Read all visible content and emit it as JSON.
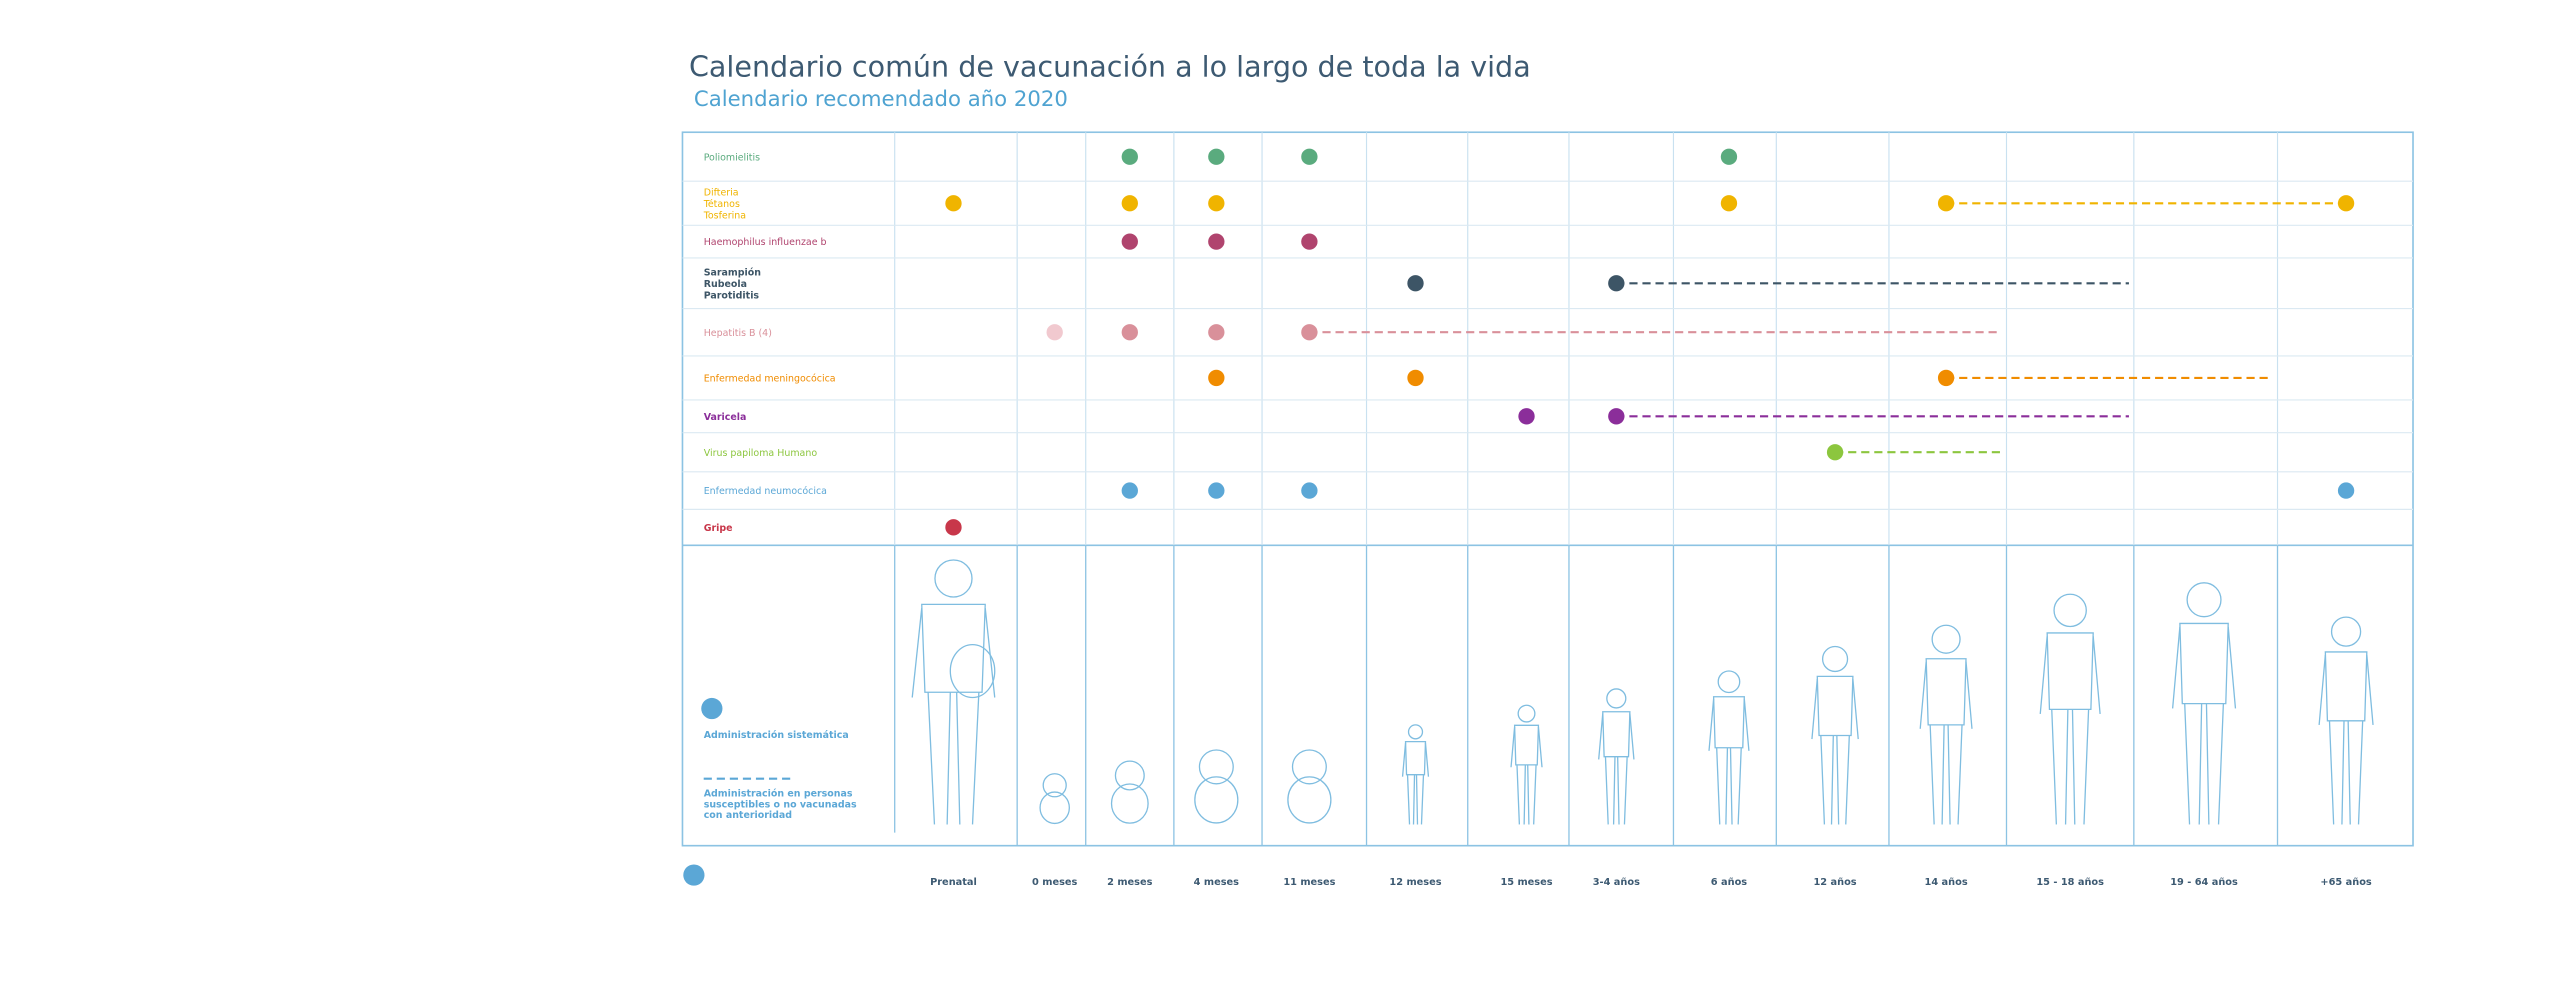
{
  "header": {
    "title": "Calendario común de vacunación a lo largo de toda la vida",
    "subtitle": "Calendario recomendado año 2020"
  },
  "ages": [
    "Prenatal",
    "0 meses",
    "2 meses",
    "4 meses",
    "11 meses",
    "12 meses",
    "15 meses",
    "3-4 años",
    "6 años",
    "12 años",
    "14 años",
    "15 - 18 años",
    "19 - 64 años",
    "+65 años"
  ],
  "vaccines": [
    {
      "name": [
        "Poliomielitis"
      ],
      "color": "#5aab7e",
      "doses": [
        "2 meses",
        "4 meses",
        "11 meses",
        "6 años"
      ]
    },
    {
      "name": [
        "Difteria",
        "Tétanos",
        "Tosferina"
      ],
      "color": "#f0b400",
      "doses": [
        "Prenatal",
        "2 meses",
        "4 meses",
        "6 años",
        "14 años",
        "+65 años"
      ],
      "susceptible": [
        "14 años",
        "+65 años"
      ]
    },
    {
      "name": [
        "Haemophilus influenzae b"
      ],
      "color": "#b0446e",
      "doses": [
        "2 meses",
        "4 meses",
        "11 meses"
      ]
    },
    {
      "name": [
        "Sarampión",
        "Rubeola",
        "Parotiditis"
      ],
      "color": "#3d5566",
      "doses": [
        "12 meses",
        "3-4 años"
      ],
      "susceptible": [
        "3-4 años",
        "19 - 64 años"
      ]
    },
    {
      "name": [
        "Hepatitis B (4)"
      ],
      "color": "#d9909a",
      "doses": [
        "2 meses",
        "4 meses",
        "11 meses"
      ],
      "light_doses": [
        "0 meses"
      ],
      "light_color": "#f1c9cf",
      "susceptible": [
        "11 meses",
        "15 - 18 años"
      ]
    },
    {
      "name": [
        "Enfermedad meningocócica"
      ],
      "color": "#f08c00",
      "doses": [
        "4 meses",
        "12 meses",
        "14 años"
      ],
      "susceptible": [
        "14 años",
        "+65 años"
      ]
    },
    {
      "name": [
        "Varicela"
      ],
      "color": "#8b2e9a",
      "doses": [
        "15 meses",
        "3-4 años"
      ],
      "susceptible": [
        "3-4 años",
        "19 - 64 años"
      ]
    },
    {
      "name": [
        "Virus papiloma Humano"
      ],
      "color": "#8cc63e",
      "doses": [
        "12 años"
      ],
      "susceptible": [
        "12 años",
        "15 - 18 años"
      ]
    },
    {
      "name": [
        "Enfermedad neumocócica"
      ],
      "color": "#5ba7d6",
      "doses": [
        "2 meses",
        "4 meses",
        "11 meses",
        "+65 años"
      ]
    },
    {
      "name": [
        "Gripe"
      ],
      "color": "#c8374a",
      "doses": [
        "Prenatal"
      ]
    }
  ],
  "legend": {
    "color": "#5ba7d6",
    "systematic": "Administración sistemática",
    "susceptible": [
      "Administración en personas",
      "susceptibles o no vacunadas",
      "con anterioridad"
    ]
  }
}
